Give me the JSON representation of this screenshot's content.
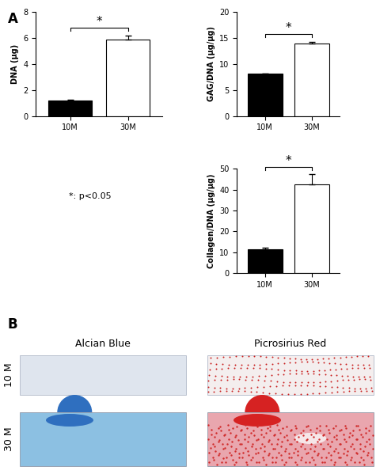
{
  "panel_labels": [
    "A",
    "B"
  ],
  "note": "*: p<0.05",
  "chart_data": [
    {
      "type": "bar",
      "categories": [
        "10M",
        "30M"
      ],
      "values": [
        1.2,
        5.85
      ],
      "errors": [
        0.05,
        0.35
      ],
      "colors": [
        "#000000",
        "#ffffff"
      ],
      "y_label": "DNA (μg)",
      "ylim": [
        0,
        8
      ],
      "yticks": [
        0,
        2,
        4,
        6,
        8
      ],
      "annotation": "*"
    },
    {
      "type": "bar",
      "categories": [
        "10M",
        "30M"
      ],
      "values": [
        8.1,
        13.9
      ],
      "errors": [
        0.1,
        0.4
      ],
      "colors": [
        "#000000",
        "#ffffff"
      ],
      "y_label": "GAG/DNA (μg/μg)",
      "ylim": [
        0,
        20
      ],
      "yticks": [
        0,
        5,
        10,
        15,
        20
      ],
      "annotation": "*"
    },
    {
      "type": "bar",
      "categories": [
        "10M",
        "30M"
      ],
      "values": [
        11.5,
        42.5
      ],
      "errors": [
        0.5,
        5.0
      ],
      "colors": [
        "#000000",
        "#ffffff"
      ],
      "y_label": "Collagen/DNA (μg/μg)",
      "ylim": [
        0,
        50
      ],
      "yticks": [
        0,
        10,
        20,
        30,
        40,
        50
      ],
      "annotation": "*"
    }
  ],
  "stains": {
    "columns": [
      "Alcian Blue",
      "Picrosirius Red"
    ],
    "rows": [
      "10 M",
      "30 M"
    ]
  }
}
